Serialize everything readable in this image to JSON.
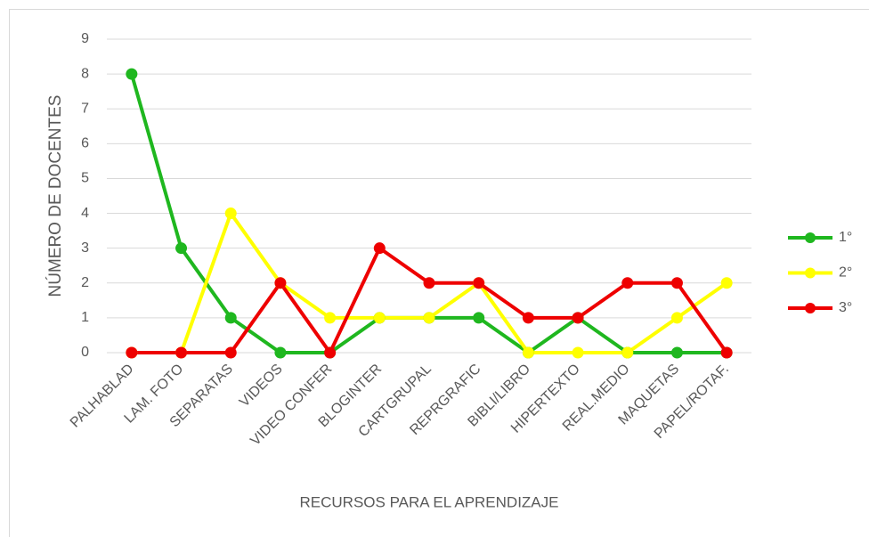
{
  "chart_data": {
    "type": "line",
    "x_label": "RECURSOS PARA EL APRENDIZAJE",
    "y_label": "NÚMERO DE DOCENTES",
    "categories": [
      "PALHABLAD",
      "LAM. FOTO",
      "SEPARATAS",
      "VIDEOS",
      "VIDEO CONFER",
      "BLOGINTER",
      "CARTGRUPAL",
      "REPRGRAFIC",
      "BIBLI/LIBRO",
      "HIPERTEXTO",
      "REAL.MEDIO",
      "MAQUETAS",
      "PAPEL/ROTAF."
    ],
    "series": [
      {
        "name": "1°",
        "color": "#1fb71f",
        "values": [
          8,
          3,
          1,
          0,
          0,
          1,
          1,
          1,
          0,
          1,
          0,
          0,
          0
        ]
      },
      {
        "name": "2°",
        "color": "#ffff00",
        "values": [
          0,
          0,
          4,
          2,
          1,
          1,
          1,
          2,
          0,
          0,
          0,
          1,
          2
        ]
      },
      {
        "name": "3°",
        "color": "#ee0000",
        "values": [
          0,
          0,
          0,
          2,
          0,
          3,
          2,
          2,
          1,
          1,
          2,
          2,
          0
        ]
      }
    ],
    "ylim": [
      0,
      9
    ],
    "yticks": [
      0,
      1,
      2,
      3,
      4,
      5,
      6,
      7,
      8,
      9
    ],
    "grid": true,
    "legend": "right"
  }
}
